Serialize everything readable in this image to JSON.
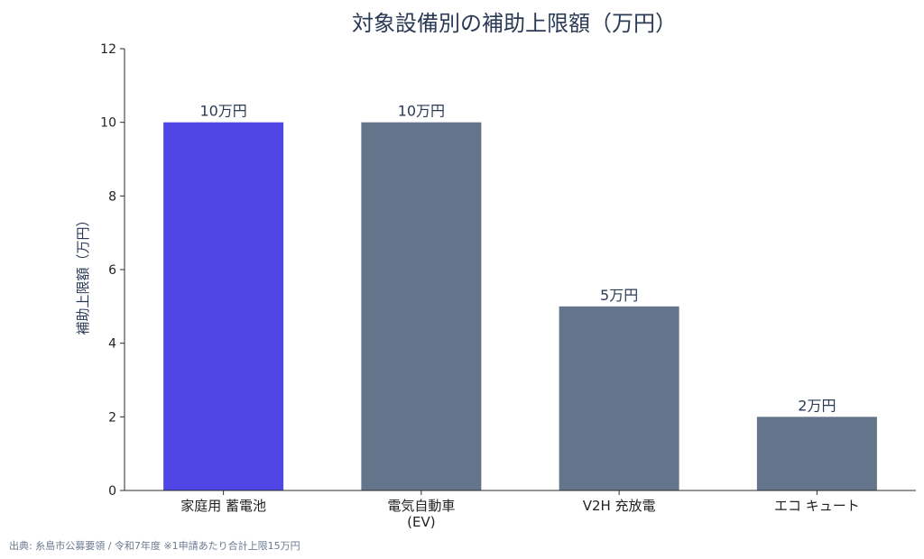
{
  "chart_data": {
    "type": "bar",
    "title": "対象設備別の補助上限額（万円）",
    "ylabel": "補助上限額（万円）",
    "xlabel": "",
    "categories": [
      "家庭用 蓄電池",
      "電気自動車\n(EV)",
      "V2H 充放電",
      "エコ キュート"
    ],
    "values": [
      10,
      10,
      5,
      2
    ],
    "data_labels": [
      "10万円",
      "10万円",
      "5万円",
      "2万円"
    ],
    "ylim": [
      0,
      12
    ],
    "yticks": [
      0,
      2,
      4,
      6,
      8,
      10,
      12
    ],
    "grid": false,
    "colors": [
      "#4f46e5",
      "#64748b",
      "#64748b",
      "#64748b"
    ]
  },
  "source_note": "出典: 糸島市公募要領 / 令和7年度 ※1申請あたり合計上限15万円"
}
